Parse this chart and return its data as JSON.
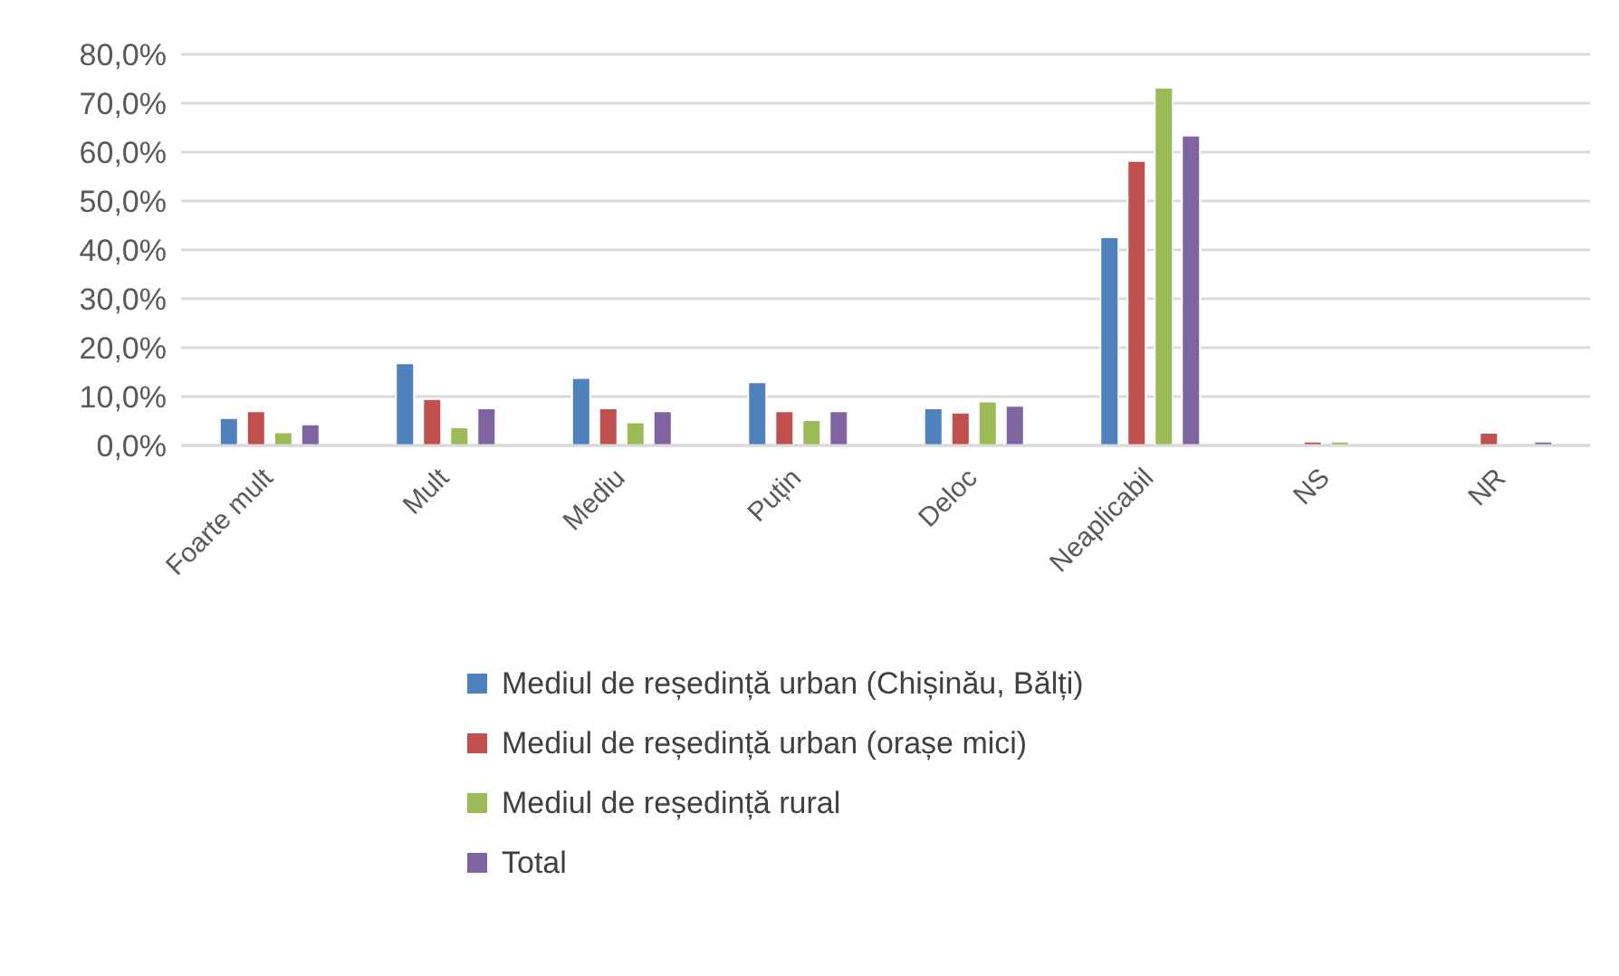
{
  "chart_data": {
    "type": "bar",
    "categories": [
      "Foarte mult",
      "Mult",
      "Mediu",
      "Puțin",
      "Deloc",
      "Neaplicabil",
      "NS",
      "NR"
    ],
    "series": [
      {
        "name": "Mediul de reședință urban (Chișinău, Bălți)",
        "color": "#4f81bd",
        "values": [
          5.6,
          16.8,
          13.8,
          12.9,
          7.6,
          42.6,
          0,
          0
        ]
      },
      {
        "name": "Mediul de reședință urban (orașe mici)",
        "color": "#c0504d",
        "values": [
          7.0,
          9.5,
          7.6,
          7.0,
          6.7,
          58.2,
          0.8,
          2.6
        ]
      },
      {
        "name": "Mediul de reședință rural",
        "color": "#9bbb59",
        "values": [
          2.7,
          3.7,
          4.7,
          5.2,
          9.0,
          73.2,
          0.8,
          0
        ]
      },
      {
        "name": "Total",
        "color": "#8064a2",
        "values": [
          4.3,
          7.6,
          7.0,
          7.0,
          8.1,
          63.4,
          0,
          0.8
        ]
      }
    ],
    "ylim": [
      0,
      80
    ],
    "yticks": [
      {
        "value": 0,
        "label": "0,0%"
      },
      {
        "value": 10,
        "label": "10,0%"
      },
      {
        "value": 20,
        "label": "20,0%"
      },
      {
        "value": 30,
        "label": "30,0%"
      },
      {
        "value": 40,
        "label": "40,0%"
      },
      {
        "value": 50,
        "label": "50,0%"
      },
      {
        "value": 60,
        "label": "60,0%"
      },
      {
        "value": 70,
        "label": "70,0%"
      },
      {
        "value": 80,
        "label": "80,0%"
      }
    ],
    "grid": "y",
    "legend": "bottom"
  }
}
